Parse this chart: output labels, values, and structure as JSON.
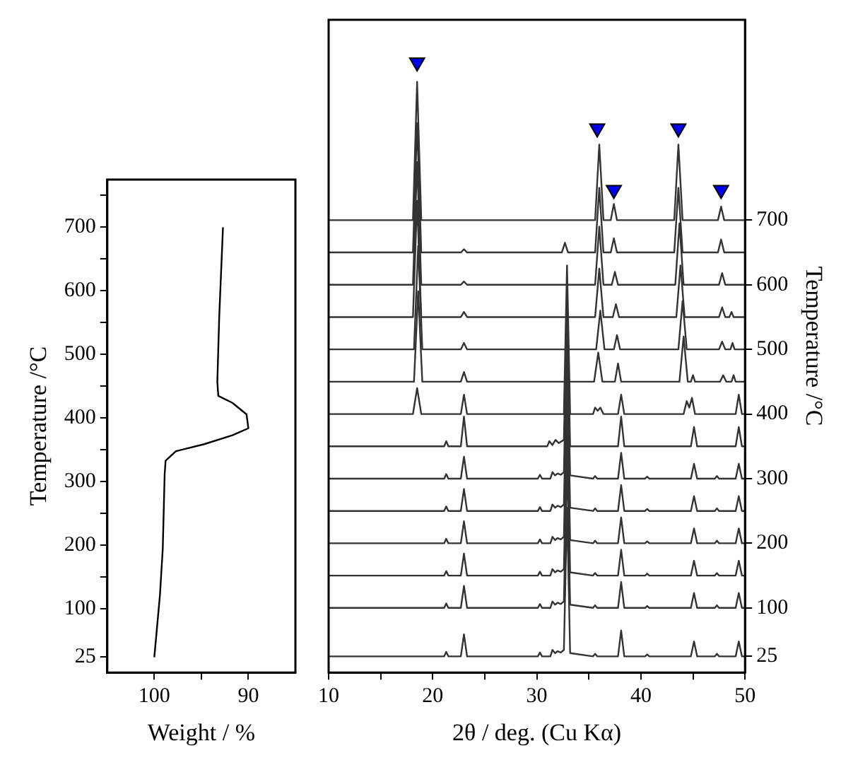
{
  "chart_data": [
    {
      "type": "line",
      "xlabel": "Weight / %",
      "ylabel": "Temperature /°C",
      "xlim": [
        105,
        85
      ],
      "xticks": [
        100,
        {
          "value": 95,
          "label": null
        },
        90
      ],
      "ylim": [
        0,
        775
      ],
      "yticks": [
        25,
        100,
        {
          "value": 150,
          "label": null
        },
        200,
        {
          "value": 250,
          "label": null
        },
        300,
        {
          "value": 350,
          "label": null
        },
        400,
        {
          "value": 450,
          "label": null
        },
        500,
        {
          "value": 550,
          "label": null
        },
        600,
        {
          "value": 650,
          "label": null
        },
        700,
        {
          "value": 750,
          "label": null
        }
      ],
      "series": [
        {
          "color": "#000000",
          "x": [
            100.0,
            99.4,
            99.1,
            98.9,
            98.8,
            97.7,
            94.7,
            91.7,
            90.0,
            90.2,
            91.7,
            93.2,
            93.3,
            93.1,
            92.7
          ],
          "values": [
            24,
            122,
            195,
            312,
            333,
            348,
            359,
            373,
            384,
            406,
            424,
            435,
            457,
            559,
            700
          ]
        }
      ]
    },
    {
      "type": "line",
      "xlabel": "2θ / deg. (Cu Kα)",
      "y2label": "Temperature /°C",
      "xlim": [
        10,
        50
      ],
      "xticks": [
        10,
        {
          "value": 15,
          "label": null
        },
        20,
        {
          "value": 25,
          "label": null
        },
        30,
        {
          "value": 35,
          "label": null
        },
        40,
        {
          "value": 45,
          "label": null
        },
        50
      ],
      "y2lim": [
        0,
        1010
      ],
      "y2ticks": [
        25,
        100,
        200,
        300,
        400,
        500,
        600,
        700
      ],
      "series": [
        {
          "color": "#333333",
          "axis": "y2",
          "x": [
            10,
            18.1,
            18.5,
            18.9,
            35.6,
            36.0,
            36.4,
            37.1,
            37.4,
            37.7,
            43.2,
            43.6,
            44.0,
            47.4,
            47.7,
            48.0,
            50
          ],
          "values": [
            700,
            700,
            914,
            700,
            700,
            817,
            700,
            700,
            725,
            700,
            700,
            817,
            700,
            700,
            721,
            700,
            700
          ]
        },
        {
          "color": "#333333",
          "axis": "y2",
          "x": [
            10,
            18.1,
            18.5,
            18.9,
            22.7,
            23.0,
            23.3,
            32.4,
            32.7,
            33.0,
            35.6,
            36.0,
            36.4,
            37.1,
            37.4,
            37.7,
            43.2,
            43.6,
            44.0,
            47.4,
            47.7,
            48.0,
            50
          ],
          "values": [
            650,
            650,
            850,
            650,
            650,
            655,
            650,
            650,
            665,
            650,
            650,
            750,
            650,
            650,
            672,
            650,
            650,
            750,
            650,
            650,
            670,
            650,
            650
          ]
        },
        {
          "color": "#333333",
          "axis": "y2",
          "x": [
            10,
            18.1,
            18.5,
            18.9,
            22.7,
            23.0,
            23.3,
            35.6,
            36.0,
            36.4,
            37.2,
            37.5,
            37.8,
            43.3,
            43.7,
            44.1,
            47.5,
            47.8,
            48.1,
            50
          ],
          "values": [
            600,
            600,
            790,
            600,
            600,
            605,
            600,
            600,
            690,
            600,
            600,
            620,
            600,
            600,
            695,
            600,
            600,
            618,
            600,
            600
          ]
        },
        {
          "color": "#333333",
          "axis": "y2",
          "x": [
            10,
            18.1,
            18.5,
            18.9,
            22.7,
            23.0,
            23.3,
            35.6,
            36.0,
            36.4,
            37.3,
            37.6,
            37.9,
            43.4,
            43.8,
            44.2,
            47.5,
            47.8,
            48.1,
            48.5,
            48.7,
            48.9,
            50
          ],
          "values": [
            550,
            550,
            730,
            550,
            550,
            558,
            550,
            550,
            625,
            550,
            550,
            570,
            550,
            550,
            630,
            550,
            550,
            565,
            550,
            550,
            558,
            550,
            550
          ]
        },
        {
          "color": "#333333",
          "axis": "y2",
          "x": [
            10,
            18.2,
            18.6,
            19.0,
            22.7,
            23.0,
            23.3,
            35.7,
            36.1,
            36.5,
            37.4,
            37.7,
            38.0,
            43.6,
            44.0,
            44.4,
            47.5,
            47.8,
            48.1,
            48.6,
            48.8,
            49.0,
            50
          ],
          "values": [
            500,
            500,
            660,
            500,
            500,
            510,
            500,
            500,
            560,
            500,
            500,
            522,
            500,
            500,
            575,
            500,
            500,
            512,
            500,
            500,
            510,
            500,
            500
          ]
        },
        {
          "color": "#333333",
          "axis": "y2",
          "x": [
            10,
            18.2,
            18.6,
            19.0,
            22.7,
            23.0,
            23.3,
            35.5,
            35.9,
            36.3,
            37.5,
            37.8,
            38.1,
            43.7,
            44.1,
            44.5,
            44.8,
            45.0,
            45.2,
            47.6,
            47.9,
            48.2,
            48.7,
            48.9,
            49.1,
            50
          ],
          "values": [
            450,
            450,
            590,
            450,
            450,
            465,
            450,
            450,
            495,
            450,
            450,
            478,
            450,
            450,
            520,
            450,
            450,
            460,
            450,
            450,
            460,
            450,
            450,
            460,
            450,
            450
          ]
        },
        {
          "color": "#333333",
          "axis": "y2",
          "x": [
            10,
            18.1,
            18.5,
            18.9,
            22.7,
            23.0,
            23.3,
            32.6,
            32.9,
            33.2,
            35.4,
            35.6,
            35.85,
            36.1,
            36.4,
            37.8,
            38.1,
            38.4,
            44.1,
            44.4,
            44.65,
            44.9,
            45.2,
            49.1,
            49.4,
            49.7,
            50
          ],
          "values": [
            400,
            400,
            440,
            400,
            400,
            430,
            400,
            400,
            630,
            400,
            400,
            410,
            405,
            410,
            400,
            400,
            430,
            400,
            400,
            420,
            410,
            425,
            400,
            400,
            430,
            400,
            400
          ]
        },
        {
          "color": "#333333",
          "axis": "y2",
          "x": [
            10,
            21.1,
            21.3,
            21.5,
            22.7,
            23.0,
            23.3,
            31.0,
            31.2,
            31.5,
            31.8,
            32.1,
            32.6,
            32.9,
            33.2,
            37.8,
            38.1,
            38.4,
            44.8,
            45.1,
            45.4,
            49.1,
            49.4,
            49.7,
            50
          ],
          "values": [
            350,
            350,
            358,
            350,
            350,
            396,
            350,
            350,
            358,
            352,
            360,
            355,
            360,
            580,
            350,
            350,
            396,
            350,
            350,
            380,
            350,
            350,
            380,
            350,
            350
          ]
        },
        {
          "color": "#333333",
          "axis": "y2",
          "x": [
            10,
            21.1,
            21.3,
            21.5,
            22.7,
            23.0,
            23.3,
            30.1,
            30.3,
            30.5,
            31.3,
            31.5,
            31.75,
            32.0,
            32.3,
            32.6,
            32.9,
            33.2,
            35.4,
            35.6,
            35.8,
            37.8,
            38.1,
            38.4,
            40.4,
            40.6,
            40.8,
            44.8,
            45.1,
            45.4,
            47.1,
            47.3,
            47.5,
            49.1,
            49.4,
            49.7,
            50
          ],
          "values": [
            300,
            300,
            307,
            300,
            300,
            334,
            300,
            300,
            306,
            300,
            300,
            310,
            305,
            308,
            306,
            310,
            530,
            305,
            300,
            304,
            300,
            300,
            340,
            300,
            300,
            303,
            300,
            300,
            323,
            300,
            300,
            304,
            300,
            300,
            323,
            300,
            300
          ]
        },
        {
          "color": "#333333",
          "axis": "y2",
          "x": [
            10,
            21.1,
            21.3,
            21.5,
            22.7,
            23.0,
            23.3,
            30.1,
            30.3,
            30.5,
            31.3,
            31.5,
            31.75,
            32.0,
            32.3,
            32.6,
            32.9,
            33.2,
            35.4,
            35.6,
            35.8,
            37.8,
            38.1,
            38.4,
            40.4,
            40.6,
            40.8,
            44.8,
            45.1,
            45.4,
            47.1,
            47.3,
            47.5,
            49.1,
            49.4,
            49.7,
            50
          ],
          "values": [
            250,
            250,
            257,
            250,
            250,
            284,
            250,
            250,
            256,
            250,
            250,
            260,
            255,
            258,
            256,
            260,
            480,
            255,
            250,
            254,
            250,
            250,
            290,
            250,
            250,
            253,
            250,
            250,
            273,
            250,
            250,
            254,
            250,
            250,
            273,
            250,
            250
          ]
        },
        {
          "color": "#333333",
          "axis": "y2",
          "x": [
            10,
            21.1,
            21.3,
            21.5,
            22.7,
            23.0,
            23.3,
            30.1,
            30.3,
            30.5,
            31.3,
            31.5,
            31.75,
            32.0,
            32.3,
            32.6,
            32.9,
            33.2,
            35.4,
            35.6,
            35.8,
            37.8,
            38.1,
            38.4,
            40.4,
            40.6,
            40.8,
            44.8,
            45.1,
            45.4,
            47.1,
            47.3,
            47.5,
            49.1,
            49.4,
            49.7,
            50
          ],
          "values": [
            200,
            200,
            207,
            200,
            200,
            234,
            200,
            200,
            206,
            200,
            200,
            210,
            205,
            208,
            206,
            210,
            430,
            205,
            200,
            204,
            200,
            200,
            240,
            200,
            200,
            203,
            200,
            200,
            223,
            200,
            200,
            204,
            200,
            200,
            223,
            200,
            200
          ]
        },
        {
          "color": "#333333",
          "axis": "y2",
          "x": [
            10,
            21.1,
            21.3,
            21.5,
            22.7,
            23.0,
            23.3,
            30.1,
            30.3,
            30.5,
            31.3,
            31.5,
            31.75,
            32.0,
            32.3,
            32.6,
            32.9,
            33.2,
            35.4,
            35.6,
            35.8,
            37.8,
            38.1,
            38.4,
            40.4,
            40.6,
            40.8,
            44.8,
            45.1,
            45.4,
            47.1,
            47.3,
            47.5,
            49.1,
            49.4,
            49.7,
            50
          ],
          "values": [
            150,
            150,
            157,
            150,
            150,
            184,
            150,
            150,
            156,
            150,
            150,
            160,
            155,
            158,
            156,
            160,
            380,
            155,
            150,
            154,
            150,
            150,
            190,
            150,
            150,
            153,
            150,
            150,
            173,
            150,
            150,
            154,
            150,
            150,
            173,
            150,
            150
          ]
        },
        {
          "color": "#333333",
          "axis": "y2",
          "x": [
            10,
            21.1,
            21.3,
            21.5,
            22.7,
            23.0,
            23.3,
            30.1,
            30.3,
            30.5,
            31.3,
            31.5,
            31.75,
            32.0,
            32.3,
            32.6,
            32.9,
            33.2,
            35.4,
            35.6,
            35.8,
            37.8,
            38.1,
            38.4,
            40.4,
            40.6,
            40.8,
            44.8,
            45.1,
            45.4,
            47.1,
            47.3,
            47.5,
            49.1,
            49.4,
            49.7,
            50
          ],
          "values": [
            100,
            100,
            107,
            100,
            100,
            134,
            100,
            100,
            106,
            100,
            100,
            110,
            105,
            108,
            106,
            110,
            330,
            105,
            100,
            104,
            100,
            100,
            140,
            100,
            100,
            103,
            100,
            100,
            123,
            100,
            100,
            104,
            100,
            100,
            123,
            100,
            100
          ]
        },
        {
          "color": "#333333",
          "axis": "y2",
          "x": [
            10,
            21.1,
            21.3,
            21.5,
            22.7,
            23.0,
            23.3,
            30.1,
            30.3,
            30.5,
            31.3,
            31.5,
            31.75,
            32.0,
            32.3,
            32.6,
            32.9,
            33.2,
            35.4,
            35.6,
            35.8,
            37.8,
            38.1,
            38.4,
            40.4,
            40.6,
            40.8,
            44.8,
            45.1,
            45.4,
            47.1,
            47.3,
            47.5,
            49.1,
            49.4,
            49.7,
            50
          ],
          "values": [
            25,
            25,
            32,
            25,
            25,
            59,
            25,
            25,
            31,
            25,
            25,
            35,
            30,
            33,
            31,
            35,
            255,
            30,
            25,
            29,
            25,
            25,
            65,
            25,
            25,
            28,
            25,
            25,
            48,
            25,
            25,
            29,
            25,
            25,
            48,
            25,
            25
          ]
        },
        {
          "type": "scatter",
          "color": "#0000ee",
          "axis": "y2",
          "marker": "triangle",
          "x": [
            18.5,
            35.8,
            37.4,
            43.6,
            47.7
          ],
          "values": [
            944,
            842,
            747,
            842,
            747
          ]
        }
      ]
    }
  ]
}
